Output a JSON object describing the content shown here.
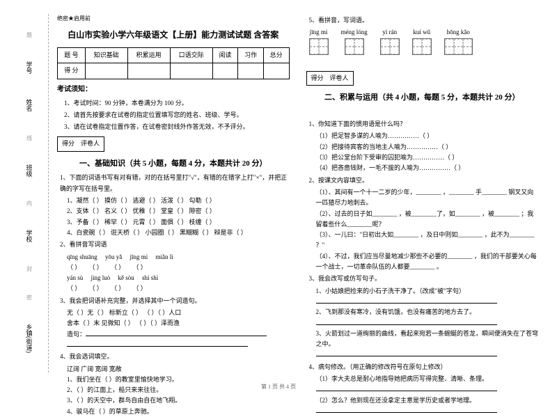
{
  "binding": {
    "labels": [
      "学号",
      "姓名",
      "班级",
      "学校",
      "乡镇(街道)"
    ],
    "hints": [
      "题",
      "线",
      "内",
      "封",
      "密"
    ]
  },
  "header_small": "绝密★启用前",
  "title": "白山市实验小学六年级语文【上册】能力测试试题 含答案",
  "score_table": {
    "row1": [
      "题 号",
      "知识基础",
      "积累运用",
      "口语交际",
      "阅读",
      "习作",
      "总分"
    ],
    "row2": [
      "得 分",
      "",
      "",
      "",
      "",
      "",
      ""
    ]
  },
  "notice_h": "考试须知：",
  "notices": [
    "1、考试时间：90 分钟，本卷满分为 100 分。",
    "2、请首先按要求在试卷的指定位置填写您的姓名、班级、学号。",
    "3、请在试卷指定位置作答，在试卷密封线外作答无效，不予评分。"
  ],
  "score_label": "得分",
  "reviewer_label": "评卷人",
  "section1_h": "一、基础知识（共 5 小题，每题 4 分，本题共计 20 分）",
  "q1": "1、下面的词语书写有对有错，对的在括号里打\"√\"，有错的在错字上打\"×\"，并把正确的字写在括号里。",
  "q1_lines": [
    "1、凝然（  ）  摸仿（  ）  逃避（  ）  活泼（  ）  勾勒（  ）",
    "2、支体（  ）  名义（  ）  优稚（  ）  堂皇（  ）  隙密（  ）",
    "3、予备（  ）  稀罕（  ）  元霄（  ）  面俱（  ）  枝缠（  ）",
    "4、白瓷碗（  ）  诳天桥（  ）  小园圈（  ）  黑糊糊（  ）  辩是非（  ）"
  ],
  "q2": "2、看拼音写词语",
  "q2_py": [
    [
      "qīng shuāng",
      "（      ）"
    ],
    [
      "yōu yǎ",
      "（      ）"
    ],
    [
      "jīng mì",
      "（      ）"
    ],
    [
      "miǎn lì",
      "（      ）"
    ],
    [
      "yán sù",
      "（      ）"
    ],
    [
      "jìng luò",
      "（      ）"
    ],
    [
      "kě sòu",
      "（      ）"
    ],
    [
      "shì shì",
      "（      ）"
    ]
  ],
  "q3": "3、我会把词语补充完整，并选择其中一个词造句。",
  "q3_lines": [
    "无（  ）无（  ）      标新立（  ）      （  ）（  ）人口",
    "舍本（  ）末      见微知（  ）      （  ）（  ）泽而渔"
  ],
  "q3_make": "造句：",
  "q4": "4、我会选词填空。",
  "q4_words": "辽阔    广阔    宽阔    宽敞",
  "q4_lines": [
    "1、我们坐在（      ）的教室里愉快地学习。",
    "2、（      ）的江面上，船只来来往往。",
    "3、（      ）的天空中，群鸟自由自在地飞翔。",
    "4、骏马在（      ）的草原上奔驰。"
  ],
  "q5": "5、看拼音，写词语。",
  "q5_py": [
    "jīng  mì",
    "méng  lóng",
    "yì  rán",
    "kuí  wǔ",
    "hōng  kǎo"
  ],
  "section2_h": "二、积累与运用（共 4 小题，每题 5 分，本题共计 20 分）",
  "s2q1": "1、你知道下面的惯用语是什么吗？",
  "s2q1_lines": [
    "（1）把足智多谋的人喻为……………（      ）",
    "（2）把接待宾客的当地主人喻为……………（      ）",
    "（3）把公堂台阶下受审的囚犯喻为……………（      ）",
    "（4）把吝啬钱财，一毛不拔的人喻为……………（      ）"
  ],
  "s2q2": "2、按课文内容填空。",
  "s2q2_lines": [
    "（1）、其间有一个十一二岁的少年，________ ，________ 手________ 钢叉又向一匹猹尽力地刺去。",
    "（2）、过去的日子如________ ，被________了，如________ ，被________ ；我留着些什么________呢？",
    "（3）、一儿曰：\"日初出大如________ ，及日中则如________ ，此不为________ ？\"",
    "（4）、不过，我们应当尽量地减少那些不必要的________ ，我们的干部要关心每一个战士，一切革命队伍的人都要________ 。"
  ],
  "s2q3": "3、我会改写或仿写句子。",
  "s2q3_lines": [
    "1、小姑娘把捡来的小石子洗干净了。（改成\"被\"字句）",
    "2、飞到那没有寒冷，没有饥饿，也没有痛苦的地方去了。",
    "3、火箭划过一道绚丽的曲线，看起来宛若一条蜿蜒的苍龙，瞬间便消失在了苍穹之中。"
  ],
  "s2q4": "4、病句修改。（用正确的修改符号在原句上修改）",
  "s2q4_lines": [
    "（1）李大夫总是耐心地指导她把病历写得完整、清晰、条理。",
    "（2）怎么？他到现在还没拿定主意是学历史或者学地理。"
  ],
  "footer": "第 1 页  共 4 页"
}
